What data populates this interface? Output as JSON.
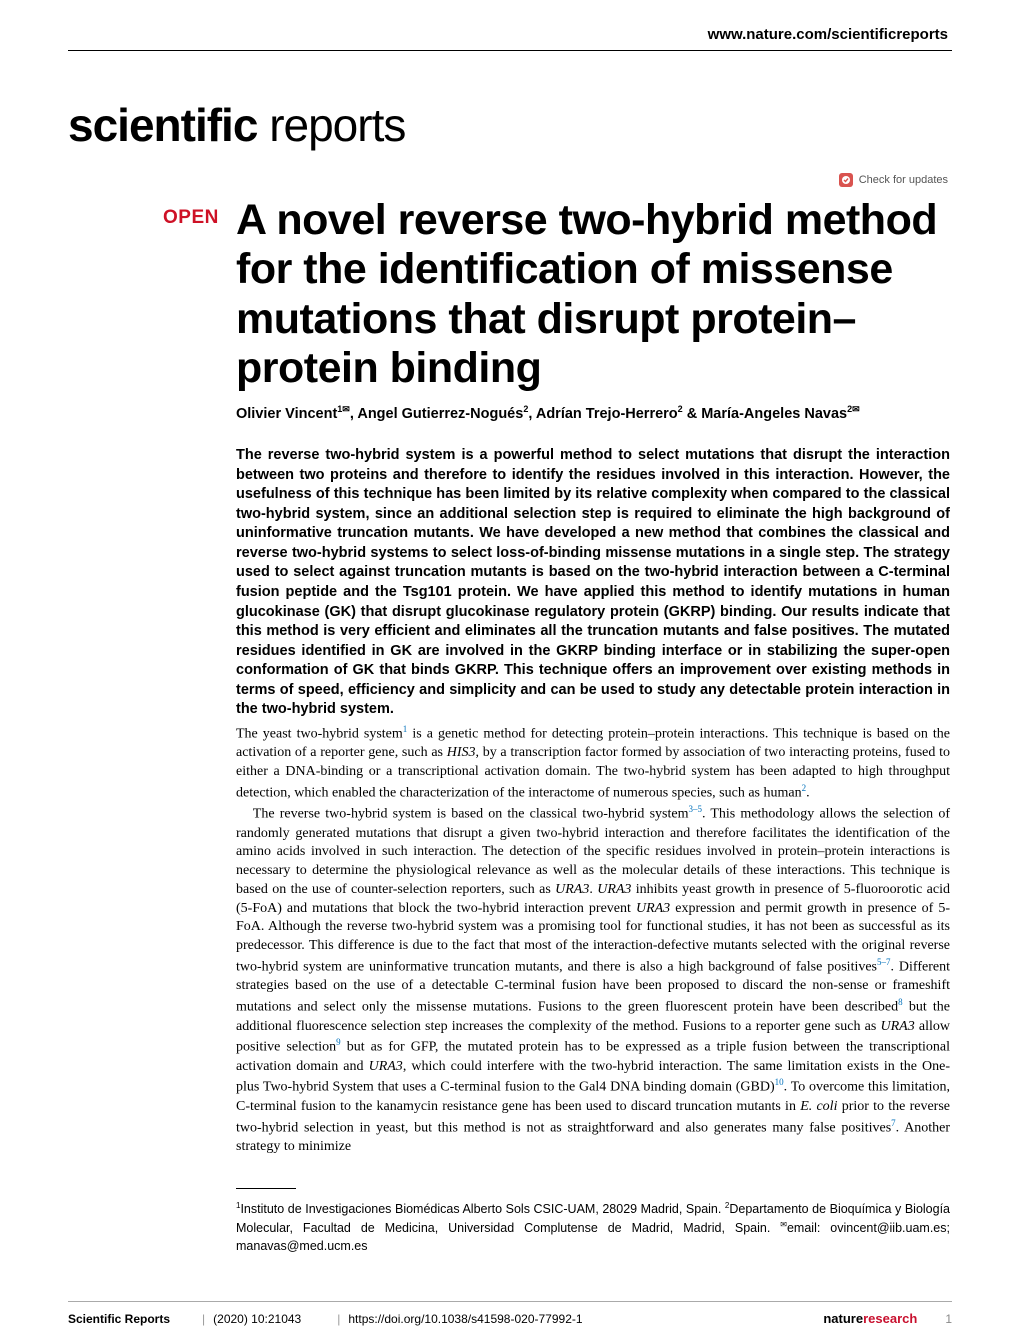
{
  "header": {
    "site_url": "www.nature.com/scientificreports"
  },
  "journal_logo": {
    "bold": "scientific",
    "light": " reports"
  },
  "check_updates_label": "Check for updates",
  "open_badge": "OPEN",
  "title": "A novel reverse two-hybrid method for the identification of missense mutations that disrupt protein–protein binding",
  "authors_html": "Olivier Vincent<sup>1✉</sup>, Angel Gutierrez-Nogués<sup>2</sup>, Adrían Trejo-Herrero<sup>2</sup> & María-Angeles Navas<sup>2✉</sup>",
  "abstract": "The reverse two-hybrid system is a powerful method to select mutations that disrupt the interaction between two proteins and therefore to identify the residues involved in this interaction. However, the usefulness of this technique has been limited by its relative complexity when compared to the classical two-hybrid system, since an additional selection step is required to eliminate the high background of uninformative truncation mutants. We have developed a new method that combines the classical and reverse two-hybrid systems to select loss-of-binding missense mutations in a single step. The strategy used to select against truncation mutants is based on the two-hybrid interaction between a C-terminal fusion peptide and the Tsg101 protein. We have applied this method to identify mutations in human glucokinase (GK) that disrupt glucokinase regulatory protein (GKRP) binding. Our results indicate that this method is very efficient and eliminates all the truncation mutants and false positives. The mutated residues identified in GK are involved in the GKRP binding interface or in stabilizing the super-open conformation of GK that binds GKRP. This technique offers an improvement over existing methods in terms of speed, efficiency and simplicity and can be used to study any detectable protein interaction in the two-hybrid system.",
  "body": {
    "p1": "The yeast two-hybrid system<sup>1</sup> is a genetic method for detecting protein–protein interactions. This technique is based on the activation of a reporter gene, such as <em>HIS3</em>, by a transcription factor formed by association of two interacting proteins, fused to either a DNA-binding or a transcriptional activation domain. The two-hybrid system has been adapted to high throughput detection, which enabled the characterization of the interactome of numerous species, such as human<sup>2</sup>.",
    "p2": "The reverse two-hybrid system is based on the classical two-hybrid system<sup>3–5</sup>. This methodology allows the selection of randomly generated mutations that disrupt a given two-hybrid interaction and therefore facilitates the identification of the amino acids involved in such interaction. The detection of the specific residues involved in protein–protein interactions is necessary to determine the physiological relevance as well as the molecular details of these interactions. This technique is based on the use of counter-selection reporters, such as <em>URA3</em>. <em>URA3</em> inhibits yeast growth in presence of 5-fluoroorotic acid (5-FoA) and mutations that block the two-hybrid interaction prevent <em>URA3</em> expression and permit growth in presence of 5-FoA. Although the reverse two-hybrid system was a promising tool for functional studies, it has not been as successful as its predecessor. This difference is due to the fact that most of the interaction-defective mutants selected with the original reverse two-hybrid system are uninformative truncation mutants, and there is also a high background of false positives<sup>5–7</sup>. Different strategies based on the use of a detectable C-terminal fusion have been proposed to discard the non-sense or frameshift mutations and select only the missense mutations. Fusions to the green fluorescent protein have been described<sup>8</sup> but the additional fluorescence selection step increases the complexity of the method. Fusions to a reporter gene such as <em>URA3</em> allow positive selection<sup>9</sup> but as for GFP, the mutated protein has to be expressed as a triple fusion between the transcriptional activation domain and <em>URA3</em>, which could interfere with the two-hybrid interaction. The same limitation exists in the One- plus Two-hybrid System that uses a C-terminal fusion to the Gal4 DNA binding domain (GBD)<sup>10</sup>. To overcome this limitation, C-terminal fusion to the kanamycin resistance gene has been used to discard truncation mutants in <em>E. coli</em> prior to the reverse two-hybrid selection in yeast, but this method is not as straightforward and also generates many false positives<sup>7</sup>. Another strategy to minimize"
  },
  "affiliations": "<sup>1</sup>Instituto de Investigaciones Biomédicas Alberto Sols CSIC-UAM, 28029 Madrid, Spain. <sup>2</sup>Departamento de Bioquímica y Biología Molecular, Facultad de Medicina, Universidad Complutense de Madrid, Madrid, Spain. <sup>✉</sup>email: ovincent@iib.uam.es; manavas@med.ucm.es",
  "footer": {
    "journal": "Scientific Reports",
    "issue": "(2020) 10:21043",
    "doi": "https://doi.org/10.1038/s41598-020-77992-1",
    "publisher_nat": "nature",
    "publisher_res": "research",
    "page": "1"
  },
  "colors": {
    "open_red": "#ce1126",
    "ref_blue": "#0070bb",
    "publisher_red": "#c8102e",
    "badge_red": "#d9534f"
  }
}
